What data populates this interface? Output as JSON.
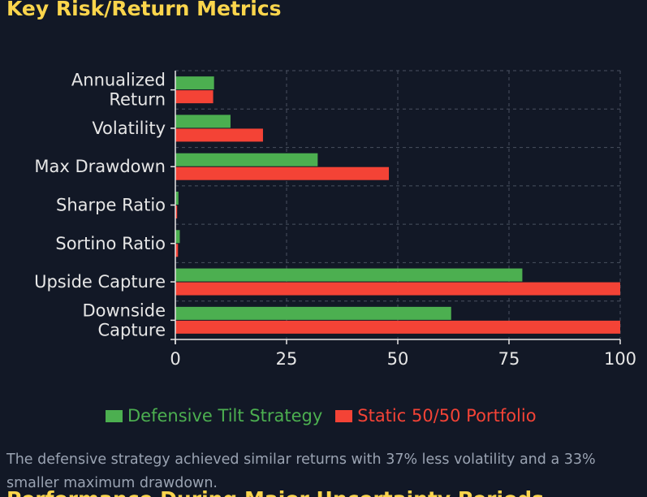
{
  "section_title": "Key Risk/Return Metrics",
  "chart_data": {
    "type": "bar",
    "orientation": "horizontal",
    "categories": [
      [
        "Annualized",
        "Return"
      ],
      [
        "Volatility"
      ],
      [
        "Max Drawdown"
      ],
      [
        "Sharpe Ratio"
      ],
      [
        "Sortino Ratio"
      ],
      [
        "Upside Capture"
      ],
      [
        "Downside",
        "Capture"
      ]
    ],
    "series": [
      {
        "name": "Defensive Tilt Strategy",
        "color": "#4caf50",
        "values": [
          8.7,
          12.4,
          32.0,
          0.7,
          1.0,
          78.0,
          62.0
        ]
      },
      {
        "name": "Static 50/50 Portfolio",
        "color": "#f44336",
        "values": [
          8.5,
          19.7,
          48.0,
          0.4,
          0.6,
          100.0,
          100.0
        ]
      }
    ],
    "xlim": [
      0,
      100
    ],
    "xticks": [
      0,
      25,
      50,
      75,
      100
    ],
    "grid": true,
    "legend_position": "bottom"
  },
  "note": "The defensive strategy achieved similar returns with 37% less volatility and a 33% smaller maximum drawdown.",
  "next_heading": "Performance During Major Uncertainty Periods"
}
